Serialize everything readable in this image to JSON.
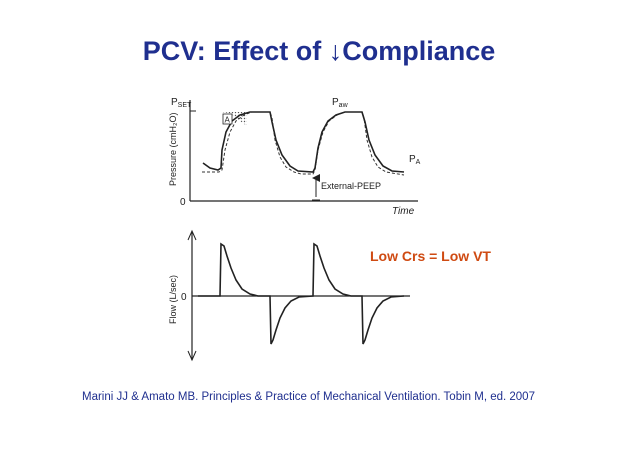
{
  "title": "PCV: Effect of ↓Compliance",
  "callout": "Low Crs = Low VT",
  "citation": "Marini JJ & Amato MB. Principles & Practice of Mechanical Ventilation. Tobin M, ed. 2007",
  "pressure_panel": {
    "y_axis_label": "Pressure (cmH₂O)",
    "p_set_label": "P",
    "p_set_sub": "SET",
    "p_aw_label": "P",
    "p_aw_sub": "aw",
    "p_a_label": "P",
    "p_a_sub": "A",
    "area_label": "A",
    "zero_label": "0",
    "peep_label": "External-PEEP",
    "x_axis_label": "Time"
  },
  "flow_panel": {
    "y_axis_label": "Flow (L/sec)",
    "zero_label": "0"
  },
  "colors": {
    "title": "#1f2f8f",
    "callout": "#cf4a12",
    "citation": "#1f2f8f",
    "traces": "#222222"
  }
}
